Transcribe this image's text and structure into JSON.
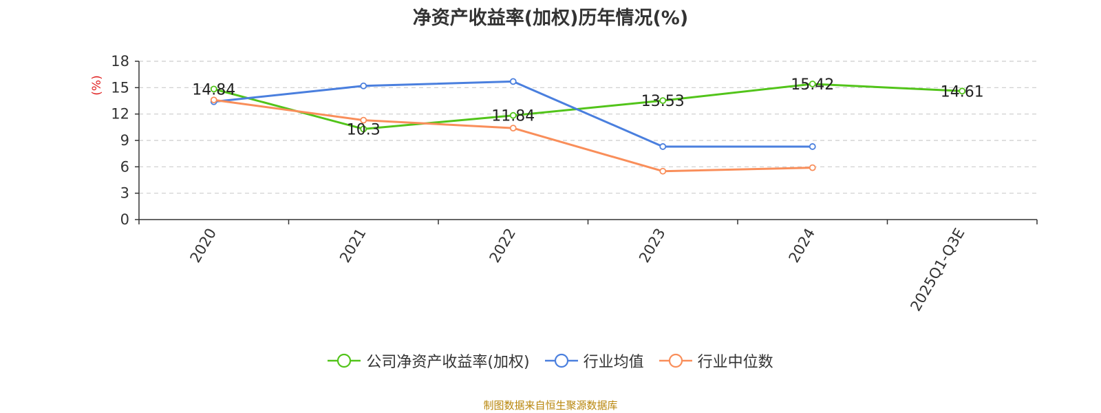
{
  "chart_data": {
    "type": "line",
    "title": "净资产收益率(加权)历年情况(%)",
    "ylabel": "(%)",
    "categories": [
      "2020",
      "2021",
      "2022",
      "2023",
      "2024",
      "2025Q1-Q3E"
    ],
    "ylim": [
      0,
      18
    ],
    "yticks": [
      "0",
      "3",
      "6",
      "9",
      "12",
      "15",
      "18"
    ],
    "grid": true,
    "legend_position": "bottom",
    "series": [
      {
        "name": "公司净资产收益率(加权)",
        "color": "#52c41a",
        "values": [
          14.84,
          10.3,
          11.84,
          13.53,
          15.42,
          14.61
        ],
        "labels": [
          "14.84",
          "10.3",
          "11.84",
          "13.53",
          "15.42",
          "14.61"
        ]
      },
      {
        "name": "行业均值",
        "color": "#4a7fde",
        "values": [
          13.4,
          15.2,
          15.7,
          8.3,
          8.3,
          null
        ]
      },
      {
        "name": "行业中位数",
        "color": "#f98e5a",
        "values": [
          13.6,
          11.3,
          10.4,
          5.5,
          5.9,
          null
        ]
      }
    ]
  },
  "source": "制图数据来自恒生聚源数据库"
}
